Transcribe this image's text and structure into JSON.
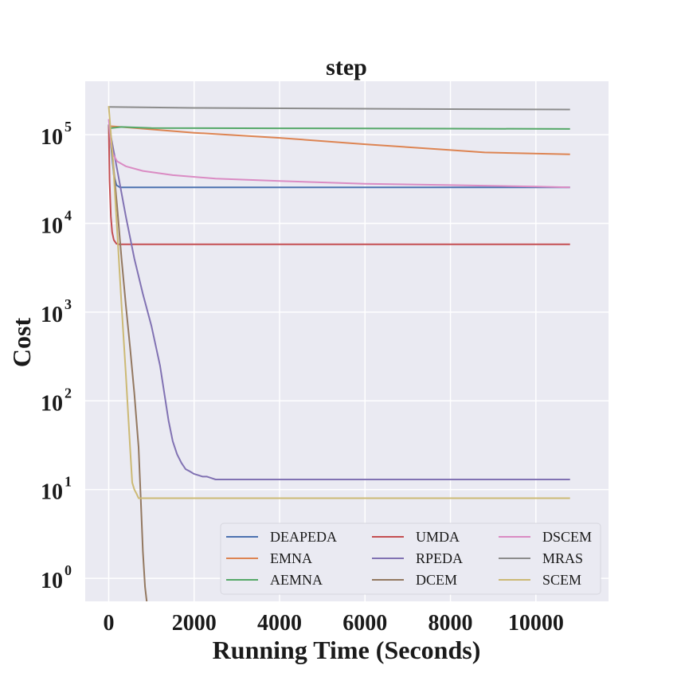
{
  "chart_data": {
    "type": "line",
    "title": "step",
    "xlabel": "Running Time (Seconds)",
    "ylabel": "Cost",
    "xscale": "linear",
    "yscale": "log",
    "xlim": [
      -550,
      11700
    ],
    "ylim": [
      0.55,
      400000
    ],
    "xticks": [
      0,
      2000,
      4000,
      6000,
      8000,
      10000
    ],
    "xtick_labels": [
      "0",
      "2000",
      "4000",
      "6000",
      "8000",
      "10000"
    ],
    "yticks": [
      1,
      10,
      100,
      1000,
      10000,
      100000
    ],
    "ytick_labels": [
      {
        "base": "10",
        "exp": "0"
      },
      {
        "base": "10",
        "exp": "1"
      },
      {
        "base": "10",
        "exp": "2"
      },
      {
        "base": "10",
        "exp": "3"
      },
      {
        "base": "10",
        "exp": "4"
      },
      {
        "base": "10",
        "exp": "5"
      }
    ],
    "grid": true,
    "background": "#eaeaf2",
    "legend": {
      "position": "lower-right",
      "columns": 3
    },
    "series": [
      {
        "name": "DEAPEDA",
        "color": "#4c72b0",
        "x": [
          0,
          60,
          120,
          180,
          260,
          400,
          10800
        ],
        "y": [
          130000,
          70000,
          35000,
          27000,
          25500,
          25500,
          25500
        ]
      },
      {
        "name": "EMNA",
        "color": "#dd8452",
        "x": [
          0,
          500,
          2000,
          4000,
          6000,
          8000,
          8800,
          10800
        ],
        "y": [
          125000,
          120000,
          105000,
          92000,
          78000,
          67000,
          63000,
          60000
        ]
      },
      {
        "name": "AEMNA",
        "color": "#55a868",
        "x": [
          0,
          300,
          1000,
          4000,
          8000,
          10800
        ],
        "y": [
          118000,
          122000,
          119000,
          118000,
          117000,
          116000
        ]
      },
      {
        "name": "UMDA",
        "color": "#c44e52",
        "x": [
          0,
          20,
          50,
          80,
          120,
          180,
          250,
          10800
        ],
        "y": [
          130000,
          30000,
          12000,
          8000,
          6500,
          5900,
          5800,
          5800
        ]
      },
      {
        "name": "RPEDA",
        "color": "#8172b3",
        "x": [
          0,
          200,
          400,
          600,
          800,
          1000,
          1200,
          1400,
          1500,
          1600,
          1700,
          1800,
          1900,
          2000,
          2100,
          2200,
          2300,
          2400,
          2500,
          10800
        ],
        "y": [
          130000,
          40000,
          12000,
          4000,
          1600,
          700,
          250,
          60,
          35,
          25,
          20,
          17,
          16,
          15,
          14.5,
          14,
          14,
          13.5,
          13,
          13
        ]
      },
      {
        "name": "DCEM",
        "color": "#937860",
        "x": [
          0,
          100,
          200,
          300,
          400,
          500,
          600,
          700,
          750,
          800,
          850,
          880,
          900
        ],
        "y": [
          130000,
          50000,
          15000,
          4000,
          1200,
          400,
          120,
          30,
          8,
          2,
          0.8,
          0.6,
          0.5
        ]
      },
      {
        "name": "DSCEM",
        "color": "#da8bc3",
        "x": [
          0,
          50,
          100,
          200,
          400,
          800,
          1500,
          2500,
          4000,
          6000,
          8000,
          10000,
          10800
        ],
        "y": [
          150000,
          80000,
          60000,
          50000,
          44000,
          39000,
          35000,
          32000,
          30000,
          28000,
          27000,
          26000,
          25500
        ]
      },
      {
        "name": "MRAS",
        "color": "#8c8c8c",
        "x": [
          0,
          2000,
          5000,
          8000,
          10800
        ],
        "y": [
          205000,
          200000,
          197000,
          194000,
          192000
        ]
      },
      {
        "name": "SCEM",
        "color": "#ccb974",
        "x": [
          0,
          100,
          200,
          300,
          400,
          500,
          550,
          600,
          650,
          700,
          800,
          10800
        ],
        "y": [
          210000,
          50000,
          8000,
          1200,
          200,
          30,
          12,
          10,
          9,
          8,
          8,
          8
        ]
      }
    ]
  }
}
